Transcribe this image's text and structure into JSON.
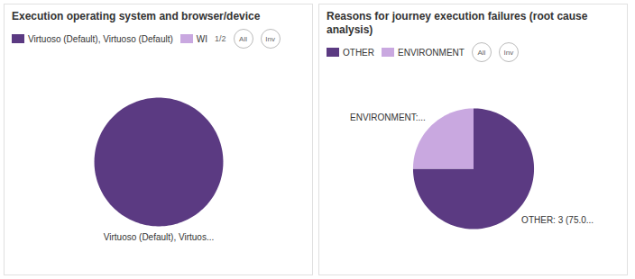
{
  "chart_data": [
    {
      "type": "pie",
      "title": "Execution operating system and browser/device",
      "categories": [
        "Virtuoso (Default), Virtuoso (Default)",
        "WI"
      ],
      "values": [
        100,
        null
      ],
      "colors": [
        "#5b3a82",
        "#c9a8e0"
      ],
      "slice_labels": [
        "Virtuoso (Default), Virtuos...",
        null
      ],
      "nav_text": "1/2",
      "buttons": [
        "All",
        "Inv"
      ]
    },
    {
      "type": "pie",
      "title": "Reasons for journey execution failures (root cause analysis)",
      "categories": [
        "OTHER",
        "ENVIRONMENT"
      ],
      "values": [
        75,
        25
      ],
      "colors": [
        "#5b3a82",
        "#c9a8e0"
      ],
      "slice_labels": [
        "OTHER: 3 (75.0...",
        "ENVIRONMENT:..."
      ],
      "buttons": [
        "All",
        "Inv"
      ]
    }
  ]
}
